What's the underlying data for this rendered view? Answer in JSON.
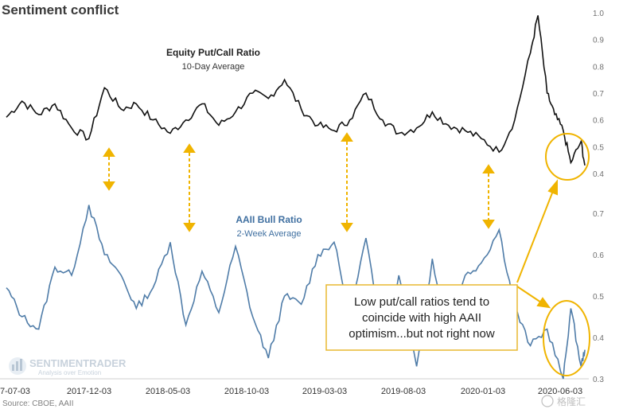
{
  "title": "Sentiment conflict",
  "source": "Source: CBOE, AAII",
  "logo": {
    "brand": "SENTIMENTRADER",
    "tagline": "Analysis over Emotion"
  },
  "watermark": "格隆汇",
  "labels": {
    "putcall_title": "Equity Put/Call Ratio",
    "putcall_sub": "10-Day Average",
    "aaii_title": "AAII Bull Ratio",
    "aaii_sub": "2-Week Average",
    "annotation": [
      "Low put/call ratios tend to",
      "coincide with high AAII",
      "optimism...but not right now"
    ]
  },
  "colors": {
    "putcall": "#111111",
    "aaii": "#4f7ca8",
    "highlight": "#f0b400",
    "annotation_border": "#e8b830"
  },
  "chart_data": [
    {
      "type": "line",
      "title": "",
      "series": [
        {
          "name": "Equity Put/Call Ratio",
          "x": [
            "2017-07-03",
            "2017-08-01",
            "2017-09-01",
            "2017-10-01",
            "2017-11-01",
            "2017-12-03",
            "2018-01-01",
            "2018-02-01",
            "2018-03-01",
            "2018-04-01",
            "2018-05-03",
            "2018-06-01",
            "2018-07-01",
            "2018-08-01",
            "2018-09-01",
            "2018-10-03",
            "2018-11-01",
            "2018-12-01",
            "2019-01-01",
            "2019-02-01",
            "2019-03-03",
            "2019-04-01",
            "2019-05-01",
            "2019-06-01",
            "2019-07-01",
            "2019-08-03",
            "2019-09-01",
            "2019-10-01",
            "2019-11-01",
            "2019-12-01",
            "2020-01-03",
            "2020-02-01",
            "2020-03-01",
            "2020-03-15",
            "2020-04-01",
            "2020-04-15",
            "2020-05-01",
            "2020-05-15",
            "2020-06-03",
            "2020-06-10"
          ],
          "values": [
            0.61,
            0.67,
            0.62,
            0.66,
            0.57,
            0.53,
            0.72,
            0.64,
            0.66,
            0.6,
            0.55,
            0.6,
            0.66,
            0.58,
            0.63,
            0.7,
            0.68,
            0.75,
            0.64,
            0.58,
            0.56,
            0.6,
            0.7,
            0.6,
            0.55,
            0.57,
            0.63,
            0.58,
            0.56,
            0.53,
            0.48,
            0.6,
            0.85,
            0.99,
            0.7,
            0.62,
            0.56,
            0.44,
            0.52,
            0.43
          ]
        }
      ],
      "yticks": [
        0.4,
        0.5,
        0.6,
        0.7,
        0.8,
        0.9,
        1.0
      ],
      "ylim": [
        0.4,
        1.0
      ],
      "grid": false
    },
    {
      "type": "line",
      "title": "",
      "series": [
        {
          "name": "AAII Bull Ratio",
          "x": [
            "2017-07-03",
            "2017-08-01",
            "2017-09-01",
            "2017-10-01",
            "2017-11-01",
            "2017-12-03",
            "2018-01-01",
            "2018-02-01",
            "2018-03-01",
            "2018-04-01",
            "2018-05-03",
            "2018-06-01",
            "2018-07-01",
            "2018-08-01",
            "2018-09-01",
            "2018-10-03",
            "2018-11-01",
            "2018-12-01",
            "2019-01-01",
            "2019-02-01",
            "2019-03-03",
            "2019-04-01",
            "2019-05-01",
            "2019-06-01",
            "2019-07-01",
            "2019-08-03",
            "2019-09-01",
            "2019-10-01",
            "2019-11-01",
            "2019-12-01",
            "2020-01-03",
            "2020-02-01",
            "2020-03-01",
            "2020-04-01",
            "2020-05-01",
            "2020-05-15",
            "2020-06-03",
            "2020-06-10"
          ],
          "values": [
            0.52,
            0.45,
            0.42,
            0.57,
            0.55,
            0.72,
            0.6,
            0.55,
            0.47,
            0.52,
            0.63,
            0.43,
            0.56,
            0.46,
            0.62,
            0.45,
            0.35,
            0.5,
            0.48,
            0.6,
            0.63,
            0.45,
            0.64,
            0.38,
            0.55,
            0.33,
            0.59,
            0.4,
            0.55,
            0.58,
            0.66,
            0.47,
            0.38,
            0.42,
            0.3,
            0.47,
            0.33,
            0.37
          ]
        }
      ],
      "yticks": [
        0.3,
        0.4,
        0.5,
        0.6,
        0.7
      ],
      "ylim": [
        0.3,
        0.7
      ],
      "grid": false
    }
  ],
  "xticks": [
    "7-07-03",
    "2017-12-03",
    "2018-05-03",
    "2018-10-03",
    "2019-03-03",
    "2019-08-03",
    "2020-01-03",
    "2020-06-03"
  ]
}
